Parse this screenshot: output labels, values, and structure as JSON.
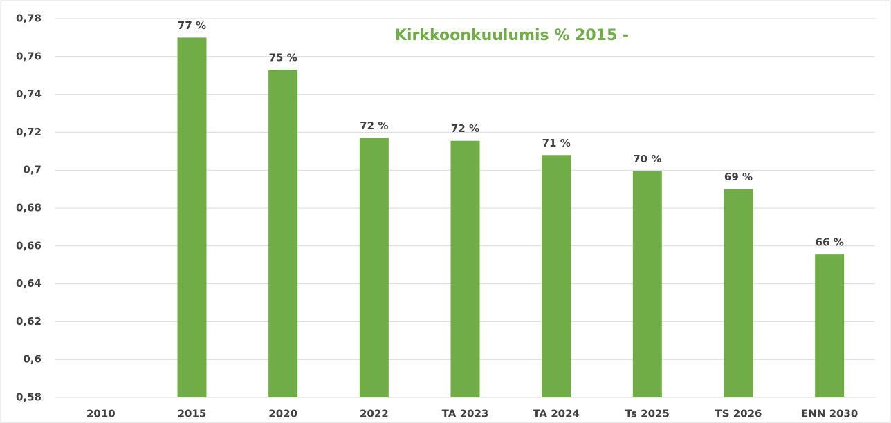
{
  "chart_data": {
    "type": "bar",
    "title": "Kirkkoonkuulumis %  2015 -",
    "categories": [
      "2010",
      "2015",
      "2020",
      "2022",
      "TA 2023",
      "TA 2024",
      "Ts 2025",
      "TS 2026",
      "ENN 2030"
    ],
    "values": [
      null,
      0.77,
      0.753,
      0.717,
      0.7155,
      0.708,
      0.6995,
      0.69,
      0.6555
    ],
    "value_labels": [
      null,
      "77 %",
      "75 %",
      "72 %",
      "72 %",
      "71 %",
      "70 %",
      "69 %",
      "66 %"
    ],
    "color": "#70ad47",
    "ylim": [
      0.58,
      0.78
    ],
    "yticks": [
      {
        "value": 0.58,
        "label": "0,58"
      },
      {
        "value": 0.6,
        "label": "0,6"
      },
      {
        "value": 0.62,
        "label": "0,62"
      },
      {
        "value": 0.64,
        "label": "0,64"
      },
      {
        "value": 0.66,
        "label": "0,66"
      },
      {
        "value": 0.68,
        "label": "0,68"
      },
      {
        "value": 0.7,
        "label": "0,7"
      },
      {
        "value": 0.72,
        "label": "0,72"
      },
      {
        "value": 0.74,
        "label": "0,74"
      },
      {
        "value": 0.76,
        "label": "0,76"
      },
      {
        "value": 0.78,
        "label": "0,78"
      }
    ],
    "grid": true
  }
}
